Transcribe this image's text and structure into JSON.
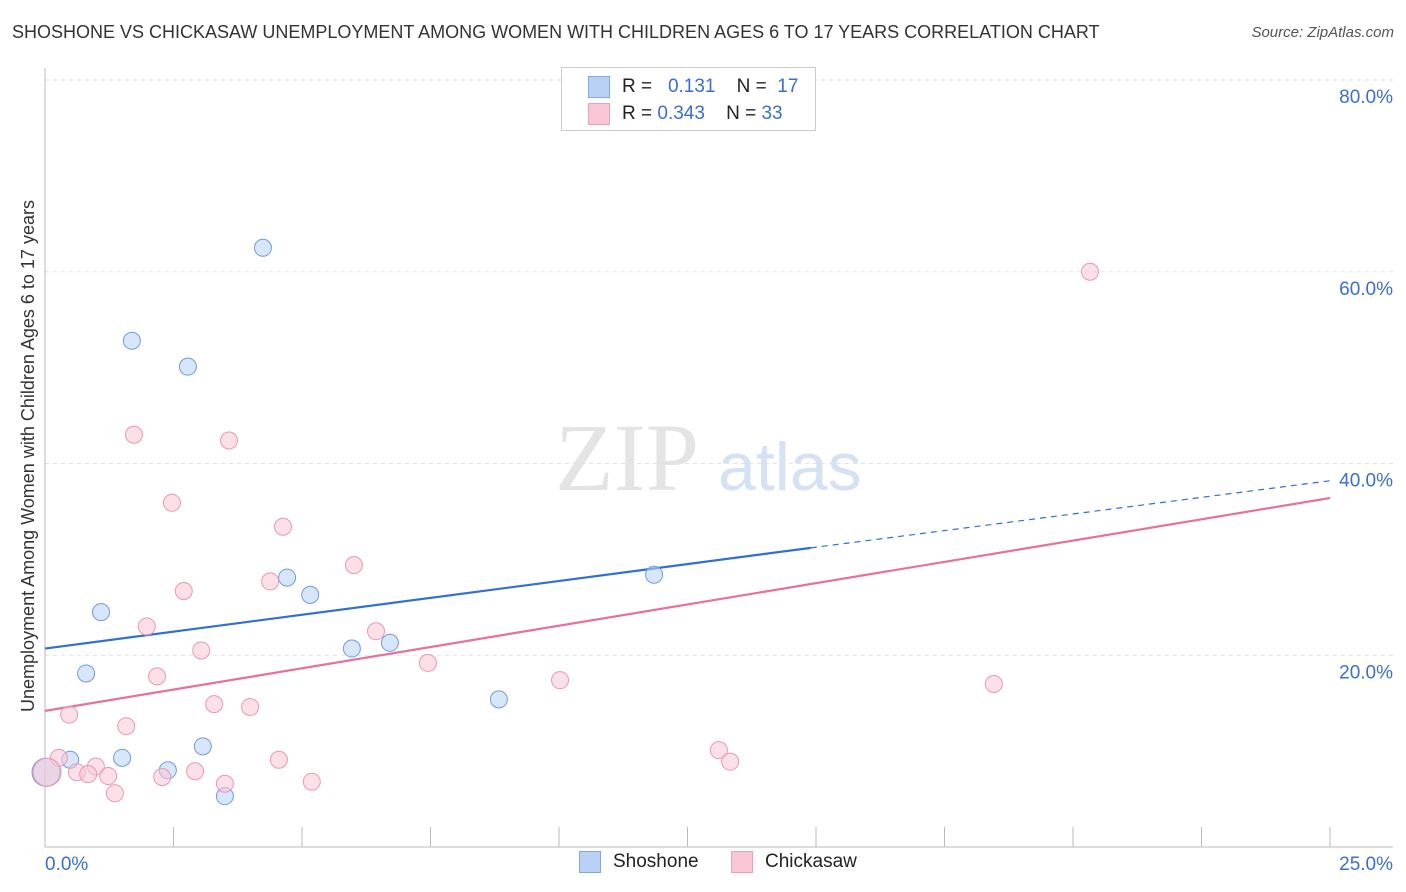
{
  "title": "SHOSHONE VS CHICKASAW UNEMPLOYMENT AMONG WOMEN WITH CHILDREN AGES 6 TO 17 YEARS CORRELATION CHART",
  "source": "Source: ZipAtlas.com",
  "watermark": "ZIPatlas",
  "legend": {
    "r_label": "R =",
    "n_label": "N =",
    "shoshone": {
      "r": "0.131",
      "n": "17"
    },
    "chickasaw": {
      "r": "0.343",
      "n": "33"
    }
  },
  "chart_data": {
    "type": "scatter",
    "title": "SHOSHONE VS CHICKASAW UNEMPLOYMENT AMONG WOMEN WITH CHILDREN AGES 6 TO 17 YEARS CORRELATION CHART",
    "xlabel": "",
    "ylabel": "Unemployment Among Women with Children Ages 6 to 17 years",
    "xlim": [
      0,
      25
    ],
    "ylim": [
      0,
      80
    ],
    "x_tick_labels": [
      "0.0%",
      "25.0%"
    ],
    "y_ticks": [
      20,
      40,
      60,
      80
    ],
    "y_tick_labels": [
      "20.0%",
      "40.0%",
      "60.0%",
      "80.0%"
    ],
    "colors": {
      "shoshone": "#4a85e0",
      "chickasaw": "#e8709a"
    },
    "series": [
      {
        "name": "Shoshone",
        "r": 0.131,
        "n": 17,
        "trend": [
          [
            0,
            20.7
          ],
          [
            14.9,
            31.2
          ],
          [
            25,
            38.2
          ]
        ],
        "solid_until": 14.9,
        "points": [
          [
            4.24,
            62.5
          ],
          [
            1.69,
            52.8
          ],
          [
            2.78,
            50.1
          ],
          [
            1.09,
            24.5
          ],
          [
            4.71,
            28.1
          ],
          [
            5.16,
            26.3
          ],
          [
            0.8,
            18.1
          ],
          [
            5.97,
            20.7
          ],
          [
            6.71,
            21.3
          ],
          [
            8.83,
            15.4
          ],
          [
            11.85,
            28.4
          ],
          [
            0.49,
            9.1
          ],
          [
            1.5,
            9.3
          ],
          [
            3.07,
            10.5
          ],
          [
            2.39,
            8.0
          ],
          [
            3.5,
            5.3
          ],
          [
            0.02,
            7.8,
            "big"
          ]
        ]
      },
      {
        "name": "Chickasaw",
        "r": 0.343,
        "n": 33,
        "trend": [
          [
            0,
            14.2
          ],
          [
            25,
            36.4
          ]
        ],
        "points": [
          [
            20.33,
            60.0
          ],
          [
            1.73,
            43.0
          ],
          [
            3.58,
            42.4
          ],
          [
            2.47,
            35.9
          ],
          [
            4.63,
            33.4
          ],
          [
            6.01,
            29.4
          ],
          [
            2.7,
            26.7
          ],
          [
            4.38,
            27.7
          ],
          [
            1.98,
            23.0
          ],
          [
            6.44,
            22.5
          ],
          [
            3.04,
            20.5
          ],
          [
            7.45,
            19.2
          ],
          [
            2.18,
            17.8
          ],
          [
            10.02,
            17.4
          ],
          [
            18.46,
            17.0
          ],
          [
            0.47,
            13.8
          ],
          [
            3.29,
            14.9
          ],
          [
            3.99,
            14.6
          ],
          [
            1.58,
            12.6
          ],
          [
            13.11,
            10.1
          ],
          [
            13.33,
            8.9
          ],
          [
            4.55,
            9.1
          ],
          [
            0.27,
            9.3
          ],
          [
            0.99,
            8.4
          ],
          [
            0.62,
            7.8
          ],
          [
            1.23,
            7.4
          ],
          [
            0.84,
            7.6
          ],
          [
            2.92,
            7.9
          ],
          [
            2.28,
            7.3
          ],
          [
            3.5,
            6.6
          ],
          [
            5.19,
            6.8
          ],
          [
            1.36,
            5.6
          ],
          [
            0.04,
            7.8,
            "big"
          ]
        ]
      }
    ]
  }
}
